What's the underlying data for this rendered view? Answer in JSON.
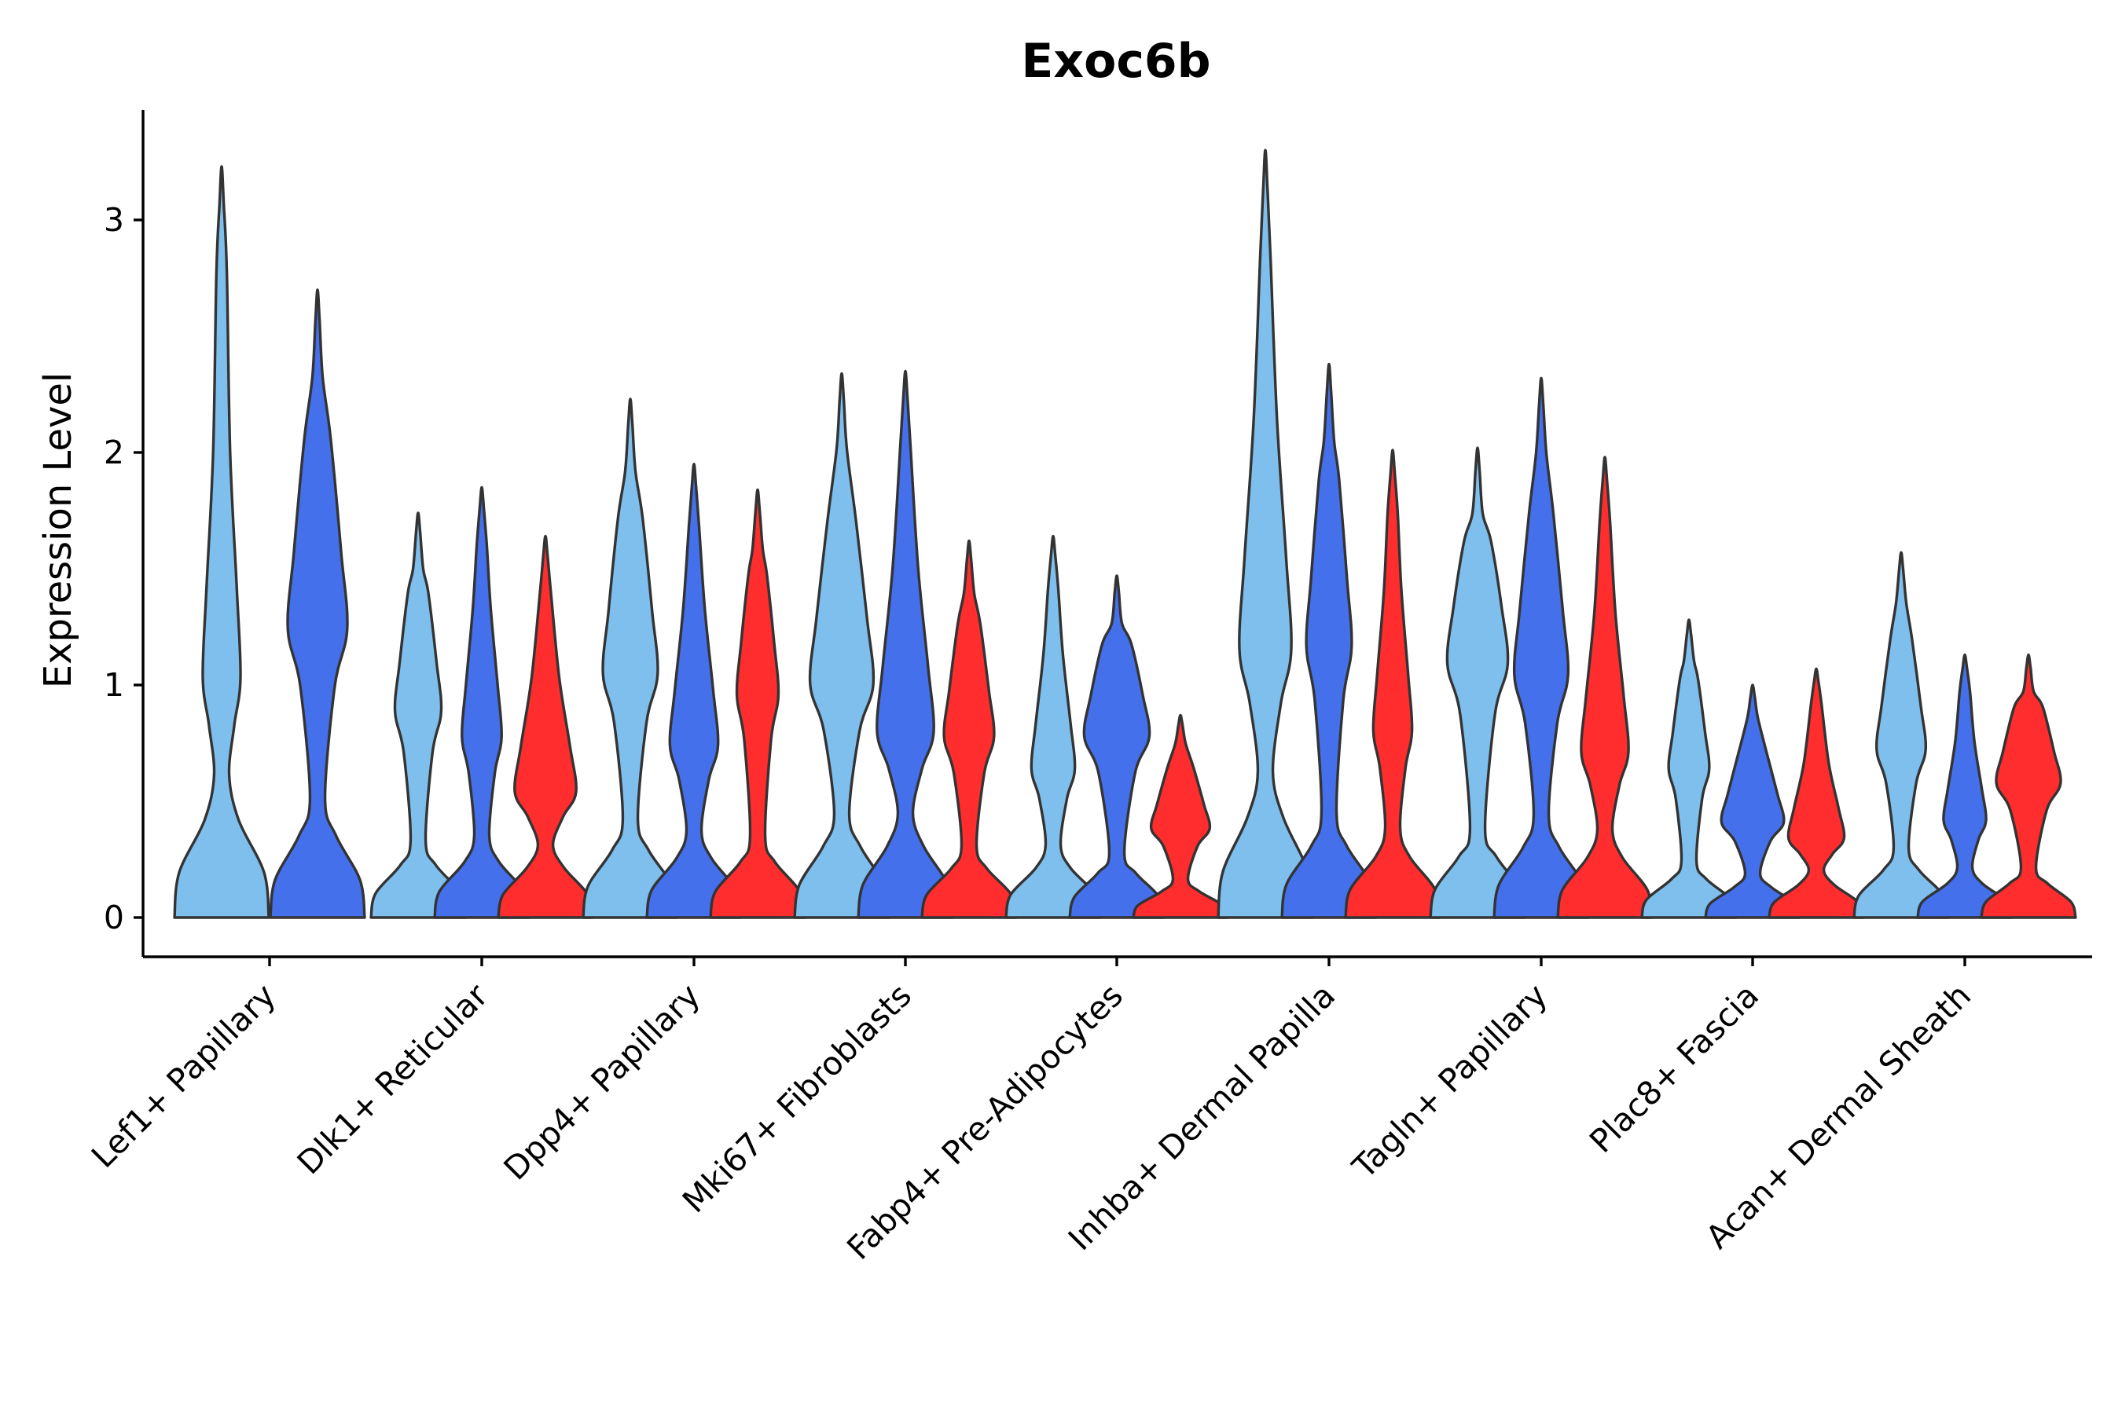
{
  "chart_data": {
    "type": "violin",
    "title": "Exoc6b",
    "xlabel": "",
    "ylabel": "Expression Level",
    "ylim": [
      -0.17,
      3.47
    ],
    "yticks": [
      0,
      1,
      2,
      3
    ],
    "grid": false,
    "legend": "none",
    "categories": [
      "Lef1+ Papillary",
      "Dlk1+ Reticular",
      "Dpp4+ Papillary",
      "Mki67+ Fibroblasts",
      "Fabp4+ Pre-Adipocytes",
      "Inhba+ Dermal Papilla",
      "Tagln+ Papillary",
      "Plac8+ Fascia",
      "Acan+ Dermal Sheath"
    ],
    "series": [
      {
        "name": "group-1",
        "color": "#7FBFED",
        "max_values": [
          3.23,
          1.74,
          2.23,
          2.34,
          1.64,
          3.3,
          2.02,
          1.28,
          1.57
        ]
      },
      {
        "name": "group-2",
        "color": "#4570EC",
        "max_values": [
          2.7,
          1.85,
          1.95,
          2.35,
          1.47,
          2.38,
          2.32,
          1.0,
          1.13
        ]
      },
      {
        "name": "group-3",
        "color": "#FF2D2D",
        "max_values": [
          null,
          1.64,
          1.84,
          1.62,
          0.87,
          2.01,
          1.98,
          1.07,
          1.13
        ]
      }
    ]
  }
}
